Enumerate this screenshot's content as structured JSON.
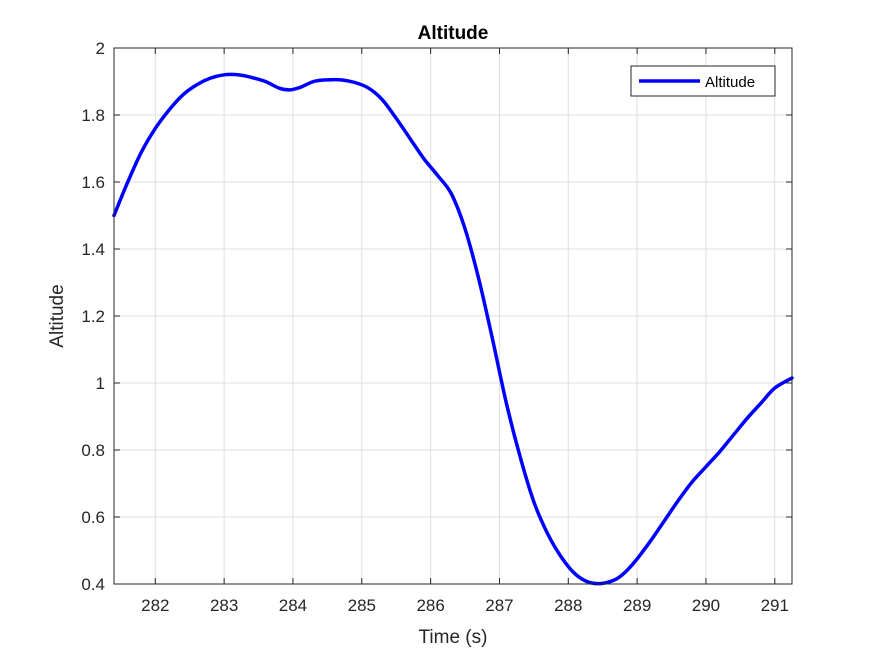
{
  "chart_data": {
    "type": "line",
    "title": "Altitude",
    "xlabel": "Time (s)",
    "ylabel": "Altitude",
    "xlim": [
      281.4,
      291.25
    ],
    "ylim": [
      0.4,
      2.0
    ],
    "xticks": [
      282,
      283,
      284,
      285,
      286,
      287,
      288,
      289,
      290,
      291
    ],
    "yticks": [
      0.4,
      0.6,
      0.8,
      1,
      1.2,
      1.4,
      1.6,
      1.8,
      2
    ],
    "xtick_labels": [
      "282",
      "283",
      "284",
      "285",
      "286",
      "287",
      "288",
      "289",
      "290",
      "291"
    ],
    "ytick_labels": [
      "0.4",
      "0.6",
      "0.8",
      "1",
      "1.2",
      "1.4",
      "1.6",
      "1.8",
      "2"
    ],
    "grid": true,
    "legend_position": "top-right",
    "series": [
      {
        "name": "Altitude",
        "color": "#0000FF",
        "x": [
          281.4,
          281.6,
          281.8,
          282.0,
          282.2,
          282.4,
          282.6,
          282.8,
          283.0,
          283.2,
          283.4,
          283.6,
          283.8,
          283.95,
          284.1,
          284.3,
          284.5,
          284.7,
          284.9,
          285.1,
          285.3,
          285.5,
          285.7,
          285.9,
          286.1,
          286.3,
          286.5,
          286.7,
          286.9,
          287.1,
          287.3,
          287.5,
          287.7,
          287.9,
          288.1,
          288.3,
          288.5,
          288.7,
          288.85,
          289.0,
          289.2,
          289.4,
          289.6,
          289.8,
          290.0,
          290.2,
          290.4,
          290.6,
          290.8,
          291.0,
          291.25
        ],
        "y": [
          1.5,
          1.6,
          1.69,
          1.76,
          1.815,
          1.86,
          1.89,
          1.91,
          1.92,
          1.92,
          1.912,
          1.9,
          1.88,
          1.875,
          1.882,
          1.9,
          1.905,
          1.905,
          1.897,
          1.88,
          1.845,
          1.79,
          1.73,
          1.67,
          1.62,
          1.565,
          1.46,
          1.31,
          1.13,
          0.94,
          0.78,
          0.645,
          0.55,
          0.48,
          0.43,
          0.405,
          0.402,
          0.415,
          0.44,
          0.475,
          0.53,
          0.59,
          0.65,
          0.705,
          0.75,
          0.795,
          0.845,
          0.895,
          0.94,
          0.985,
          1.015
        ]
      }
    ]
  },
  "legend": {
    "entries": [
      "Altitude"
    ]
  }
}
